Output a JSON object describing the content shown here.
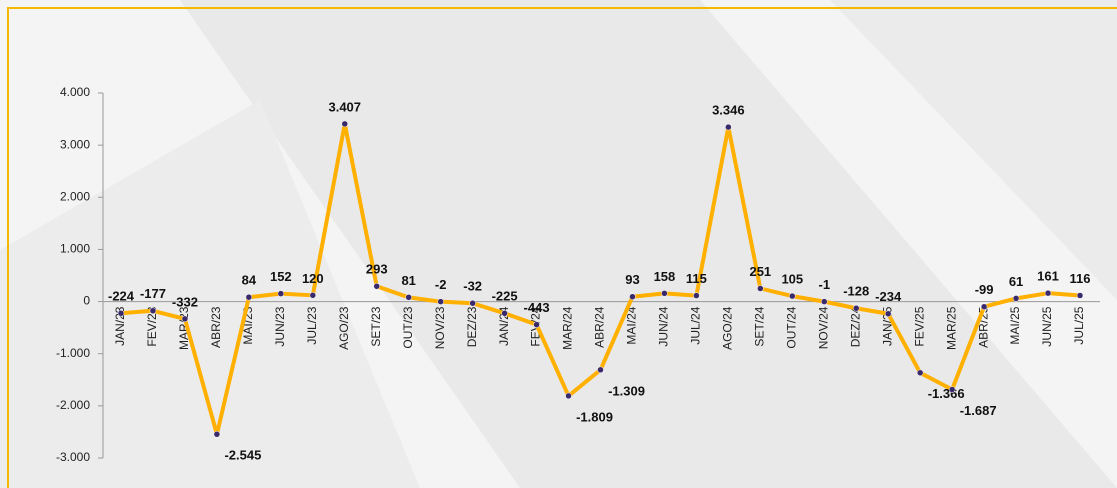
{
  "chart_data": {
    "type": "line",
    "categories": [
      "JAN/23",
      "FEV/23",
      "MAR/23",
      "ABR/23",
      "MAI/23",
      "JUN/23",
      "JUL/23",
      "AGO/23",
      "SET/23",
      "OUT/23",
      "NOV/23",
      "DEZ/23",
      "JAN/24",
      "FEV/24",
      "MAR/24",
      "ABR/24",
      "MAI/24",
      "JUN/24",
      "JUL/24",
      "AGO/24",
      "SET/24",
      "OUT/24",
      "NOV/24",
      "DEZ/24",
      "JAN/25",
      "FEV/25",
      "MAR/25",
      "ABR/25",
      "MAI/25",
      "JUN/25",
      "JUL/25"
    ],
    "values": [
      -224,
      -177,
      -332,
      -2545,
      84,
      152,
      120,
      3407,
      293,
      81,
      -2,
      -32,
      -225,
      -443,
      -1809,
      -1309,
      93,
      158,
      115,
      3346,
      251,
      105,
      -1,
      -128,
      -234,
      -1366,
      -1687,
      -99,
      61,
      161,
      116
    ],
    "value_labels": [
      "-224",
      "-177",
      "-332",
      "-2.545",
      "84",
      "152",
      "120",
      "3.407",
      "293",
      "81",
      "-2",
      "-32",
      "-225",
      "-443",
      "-1.809",
      "-1.309",
      "93",
      "158",
      "115",
      "3.346",
      "251",
      "105",
      "-1",
      "-128",
      "-234",
      "-1.366",
      "-1.687",
      "-99",
      "61",
      "161",
      "116"
    ],
    "color": "#ffb000",
    "marker_color": "#3b2a6b",
    "ylim": [
      -3000,
      4000
    ],
    "yticks": [
      {
        "value": -3000,
        "label": "-3.000"
      },
      {
        "value": -2000,
        "label": "-2.000"
      },
      {
        "value": -1000,
        "label": "-1.000"
      },
      0,
      {
        "value": 1000,
        "label": "1.000"
      },
      {
        "value": 2000,
        "label": "2.000"
      },
      {
        "value": 3000,
        "label": "3.000"
      },
      {
        "value": 4000,
        "label": "4.000"
      }
    ]
  }
}
